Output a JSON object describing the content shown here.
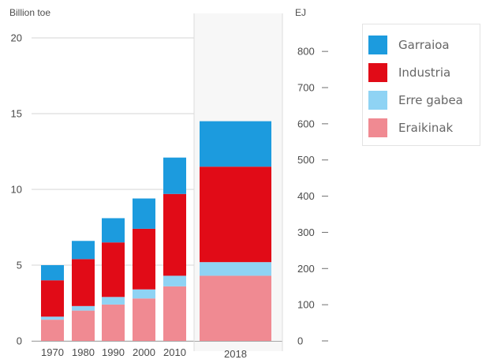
{
  "chart_data": {
    "type": "bar",
    "left_axis_label": "Billion toe",
    "right_axis_label": "EJ",
    "categories": [
      "1970",
      "1980",
      "1990",
      "2000",
      "2010",
      "2018"
    ],
    "left_ylim": [
      0,
      20
    ],
    "right_ylim": [
      0,
      837.4
    ],
    "left_ticks": [
      0,
      5,
      10,
      15,
      20
    ],
    "right_ticks": [
      0,
      100,
      200,
      300,
      400,
      500,
      600,
      700,
      800
    ],
    "grid": true,
    "legend_position": "right",
    "series": [
      {
        "name": "Eraikinak",
        "color": "#F08A92",
        "values": [
          1.4,
          2.0,
          2.4,
          2.8,
          3.6,
          4.3
        ]
      },
      {
        "name": "Erre gabea",
        "color": "#8FD3F4",
        "values": [
          0.2,
          0.3,
          0.5,
          0.6,
          0.7,
          0.9
        ]
      },
      {
        "name": "Industria",
        "color": "#E10B17",
        "values": [
          2.4,
          3.1,
          3.6,
          4.0,
          5.4,
          6.3
        ]
      },
      {
        "name": "Garraioa",
        "color": "#1C9BDE",
        "values": [
          1.0,
          1.2,
          1.6,
          2.0,
          2.4,
          3.0
        ]
      }
    ],
    "legend_order": [
      "Garraioa",
      "Industria",
      "Erre gabea",
      "Eraikinak"
    ]
  }
}
